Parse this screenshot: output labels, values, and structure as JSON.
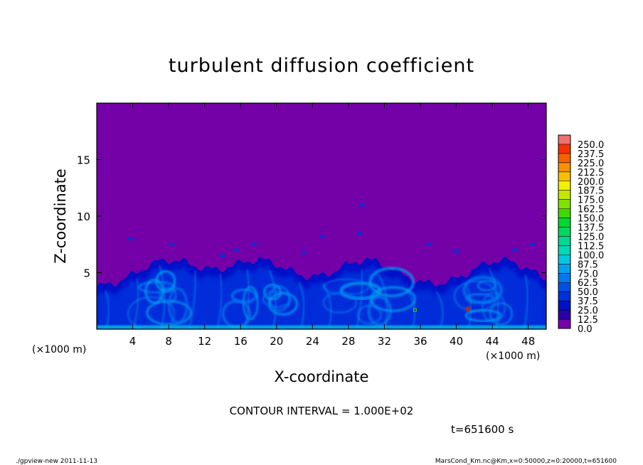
{
  "chart_data": {
    "type": "heatmap",
    "title": "turbulent diffusion coefficient",
    "xlabel": "X-coordinate",
    "ylabel": "Z-coordinate",
    "x_unit": "(×1000 m)",
    "y_unit": "(×1000 m)",
    "xlim": [
      0,
      50
    ],
    "ylim": [
      0,
      20
    ],
    "x_ticks": [
      4,
      8,
      12,
      16,
      20,
      24,
      28,
      32,
      36,
      40,
      44,
      48
    ],
    "y_ticks": [
      5,
      10,
      15
    ],
    "contour_interval": "CONTOUR INTERVAL = 1.000E+02",
    "time_label": "t=651600 s",
    "colorbar": {
      "levels": [
        "0.0",
        "12.5",
        "25.0",
        "37.5",
        "50.0",
        "62.5",
        "75.0",
        "87.5",
        "100.0",
        "112.5",
        "125.0",
        "137.5",
        "150.0",
        "162.5",
        "175.0",
        "187.5",
        "200.0",
        "212.5",
        "225.0",
        "237.5",
        "250.0"
      ],
      "colors": [
        "#7400a8",
        "#2a00a8",
        "#0010c8",
        "#0030dc",
        "#0050e8",
        "#0078f0",
        "#00a0f0",
        "#00c8e0",
        "#00d8b8",
        "#00d890",
        "#00d860",
        "#00d830",
        "#40d800",
        "#80e000",
        "#c0e800",
        "#f0f000",
        "#f8c000",
        "#f89000",
        "#f86000",
        "#f83000",
        "#f07070"
      ],
      "max_color": "#f0a0a0"
    },
    "background_value": 0.0,
    "background_color": "#7400a8",
    "boundary_layer_top_approx_km": 6.0,
    "turbulent_cells_x_km": [
      8,
      18,
      30,
      45
    ]
  },
  "footer": {
    "left": "./gpview-new   2011-11-13",
    "right": "MarsCond_Km.nc@Km,x=0:50000,z=0:20000,t=651600"
  }
}
